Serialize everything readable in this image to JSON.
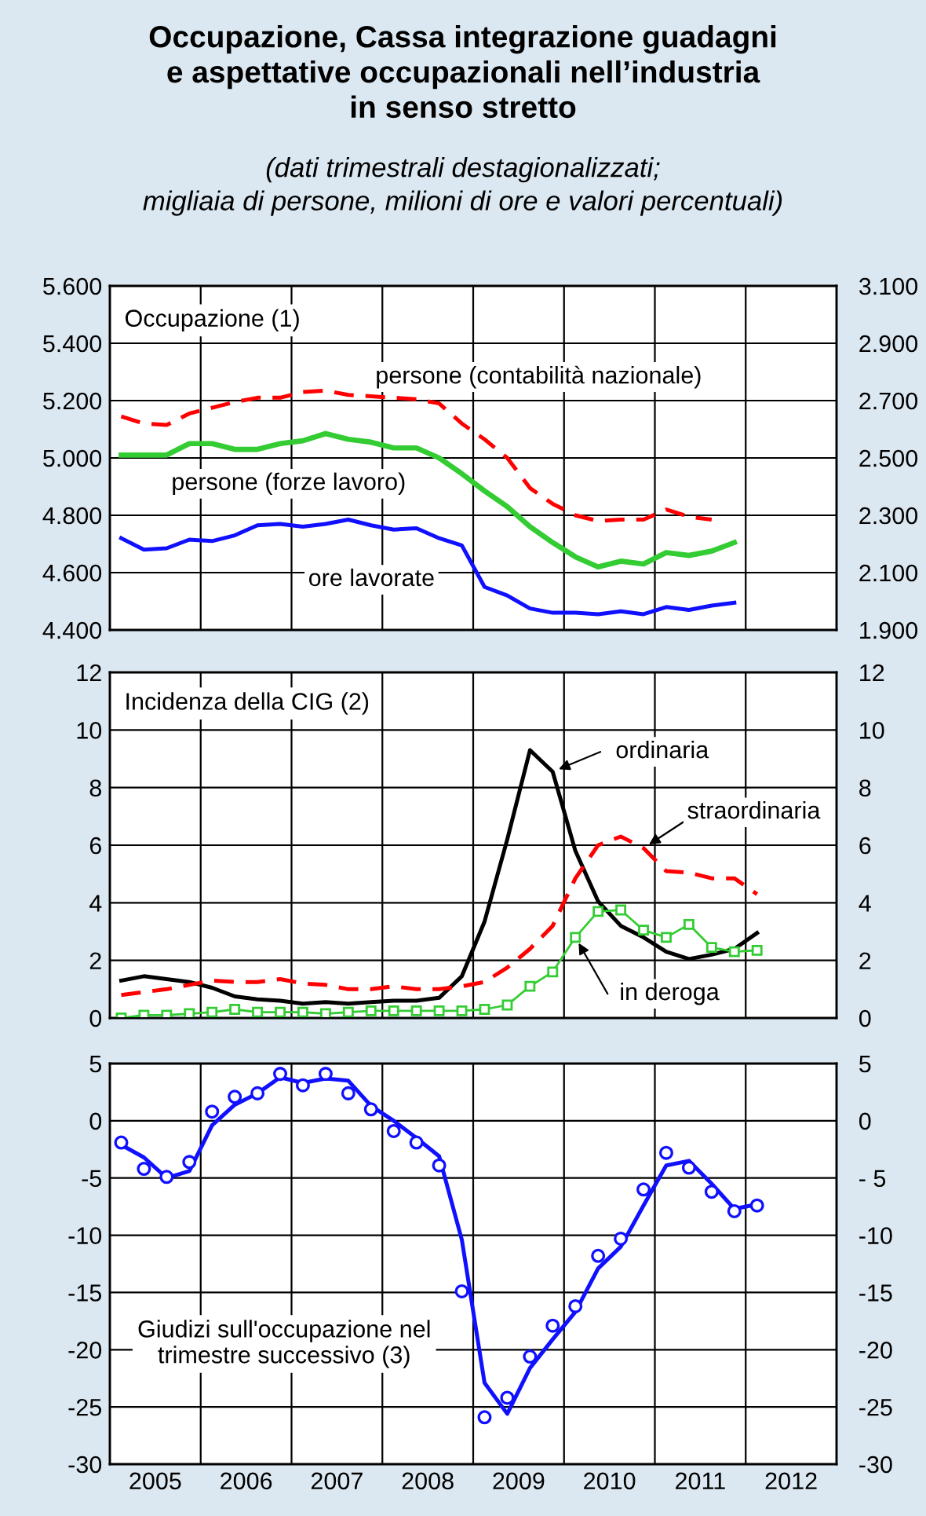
{
  "chart_data": [
    {
      "type": "line",
      "title": "Occupazione, Cassa integrazione guadagni\ne aspettative occupazionali nell’industria\nin senso stretto",
      "subtitle": "(dati trimestrali destagionalizzati;\nmigliaia di persone, milioni di ore e valori percentuali)",
      "annotations": [
        "Occupazione (1)"
      ],
      "x": [
        2005.125,
        2005.375,
        2005.625,
        2005.875,
        2006.125,
        2006.375,
        2006.625,
        2006.875,
        2007.125,
        2007.375,
        2007.625,
        2007.875,
        2008.125,
        2008.375,
        2008.625,
        2008.875,
        2009.125,
        2009.375,
        2009.625,
        2009.875,
        2010.125,
        2010.375,
        2010.625,
        2010.875,
        2011.125,
        2011.375,
        2011.625,
        2011.875
      ],
      "series": [
        {
          "name": "persone (contabilità nazionale)",
          "color": "#ff0000",
          "line_style": "dashed",
          "values": [
            5145,
            5120,
            5115,
            5155,
            5175,
            5195,
            5210,
            5210,
            5230,
            5235,
            5220,
            5215,
            5210,
            5205,
            5190,
            5120,
            5065,
            5000,
            4895,
            4840,
            4800,
            4780,
            4785,
            4785,
            4820,
            4795,
            4785,
            null
          ]
        },
        {
          "name": "persone (forze lavoro)",
          "color": "#33cc33",
          "values": [
            5010,
            5010,
            5010,
            5050,
            5050,
            5030,
            5030,
            5050,
            5060,
            5085,
            5065,
            5055,
            5035,
            5035,
            5000,
            4945,
            4885,
            4830,
            4760,
            4705,
            4655,
            4620,
            4640,
            4630,
            4670,
            4660,
            4675,
            4705
          ]
        },
        {
          "name": "ore lavorate",
          "color": "#1010ff",
          "axis": "y2",
          "values": [
            2220,
            2180,
            2185,
            2215,
            2210,
            2230,
            2265,
            2270,
            2260,
            2270,
            2285,
            2265,
            2250,
            2255,
            2220,
            2195,
            2050,
            2020,
            1975,
            1960,
            1960,
            1955,
            1965,
            1955,
            1980,
            1970,
            1985,
            1995
          ]
        }
      ],
      "xlim": [
        2005,
        2013
      ],
      "xticks": [
        {
          "value": 2006,
          "label": null
        },
        {
          "value": 2007,
          "label": null
        },
        {
          "value": 2008,
          "label": null
        },
        {
          "value": 2009,
          "label": null
        },
        {
          "value": 2010,
          "label": null
        },
        {
          "value": 2011,
          "label": null
        },
        {
          "value": 2012,
          "label": null
        }
      ],
      "ylim": [
        4400,
        5600
      ],
      "yticks": [
        {
          "value": 4400,
          "label": "4.400"
        },
        {
          "value": 4600,
          "label": "4.600"
        },
        {
          "value": 4800,
          "label": "4.800"
        },
        {
          "value": 5000,
          "label": "5.000"
        },
        {
          "value": 5200,
          "label": "5.200"
        },
        {
          "value": 5400,
          "label": "5.400"
        },
        {
          "value": 5600,
          "label": "5.600"
        }
      ],
      "y2lim": [
        1900,
        3100
      ],
      "y2ticks": [
        {
          "value": 1900,
          "label": "1.900"
        },
        {
          "value": 2100,
          "label": "2.100"
        },
        {
          "value": 2300,
          "label": "2.300"
        },
        {
          "value": 2500,
          "label": "2.500"
        },
        {
          "value": 2700,
          "label": "2.700"
        },
        {
          "value": 2900,
          "label": "2.900"
        },
        {
          "value": 3100,
          "label": "3.100"
        }
      ],
      "grid": true,
      "tick_labels": "y"
    },
    {
      "type": "line",
      "annotations": [
        "Incidenza della CIG (2)"
      ],
      "x": [
        2005.125,
        2005.375,
        2005.625,
        2005.875,
        2006.125,
        2006.375,
        2006.625,
        2006.875,
        2007.125,
        2007.375,
        2007.625,
        2007.875,
        2008.125,
        2008.375,
        2008.625,
        2008.875,
        2009.125,
        2009.375,
        2009.625,
        2009.875,
        2010.125,
        2010.375,
        2010.625,
        2010.875,
        2011.125,
        2011.375,
        2011.625,
        2011.875,
        2012.125
      ],
      "series": [
        {
          "name": "ordinaria",
          "color": "#000000",
          "values": [
            1.3,
            1.45,
            1.35,
            1.25,
            1.05,
            0.75,
            0.65,
            0.6,
            0.5,
            0.55,
            0.5,
            0.55,
            0.6,
            0.6,
            0.7,
            1.45,
            3.35,
            6.2,
            9.3,
            8.55,
            5.8,
            4.05,
            3.2,
            2.8,
            2.3,
            2.05,
            2.2,
            2.4,
            2.95
          ]
        },
        {
          "name": "straordinaria",
          "color": "#ff0000",
          "line_style": "dashed",
          "values": [
            0.8,
            0.9,
            1.0,
            1.15,
            1.3,
            1.25,
            1.25,
            1.35,
            1.2,
            1.15,
            1.0,
            1.0,
            1.1,
            1.0,
            1.0,
            1.1,
            1.25,
            1.75,
            2.4,
            3.2,
            4.85,
            6.0,
            6.3,
            5.9,
            5.1,
            5.05,
            4.85,
            4.85,
            4.3
          ]
        },
        {
          "name": "in deroga",
          "color": "#33cc33",
          "marker": "square",
          "values": [
            0.0,
            0.1,
            0.1,
            0.15,
            0.2,
            0.3,
            0.2,
            0.2,
            0.2,
            0.15,
            0.2,
            0.25,
            0.25,
            0.25,
            0.25,
            0.25,
            0.3,
            0.45,
            1.1,
            1.6,
            2.8,
            3.7,
            3.75,
            3.05,
            2.8,
            3.25,
            2.45,
            2.3,
            2.35
          ]
        }
      ],
      "xlim": [
        2005,
        2013
      ],
      "xticks": [
        {
          "value": 2006,
          "label": null
        },
        {
          "value": 2007,
          "label": null
        },
        {
          "value": 2008,
          "label": null
        },
        {
          "value": 2009,
          "label": null
        },
        {
          "value": 2010,
          "label": null
        },
        {
          "value": 2011,
          "label": null
        },
        {
          "value": 2012,
          "label": null
        }
      ],
      "ylim": [
        0,
        12
      ],
      "yticks": [
        0,
        2,
        4,
        6,
        8,
        10,
        12
      ],
      "y2lim": [
        0,
        12
      ],
      "y2ticks": [
        0,
        2,
        4,
        6,
        8,
        10,
        12
      ],
      "grid": true,
      "tick_labels": "y"
    },
    {
      "type": "line",
      "annotations": [
        "Giudizi sull'occupazione nel\ntrimestre successivo (3)"
      ],
      "x": [
        2005.125,
        2005.375,
        2005.625,
        2005.875,
        2006.125,
        2006.375,
        2006.625,
        2006.875,
        2007.125,
        2007.375,
        2007.625,
        2007.875,
        2008.125,
        2008.375,
        2008.625,
        2008.875,
        2009.125,
        2009.375,
        2009.625,
        2009.875,
        2010.125,
        2010.375,
        2010.625,
        2010.875,
        2011.125,
        2011.375,
        2011.625,
        2011.875,
        2012.125
      ],
      "series": [
        {
          "color": "#1010ff",
          "values": [
            -2.1,
            -3.2,
            -5.0,
            -4.4,
            -0.4,
            1.4,
            2.4,
            3.8,
            3.3,
            3.7,
            3.5,
            1.3,
            0.0,
            -1.5,
            -3.1,
            -10.4,
            -22.9,
            -25.6,
            -21.6,
            -19.1,
            -16.7,
            -12.9,
            -11.0,
            -7.4,
            -3.9,
            -3.5,
            -5.5,
            -7.7,
            -7.3
          ]
        },
        {
          "type": "scatter",
          "marker": "circle",
          "color": "#1010ff",
          "values": [
            -1.9,
            -4.2,
            -4.9,
            -3.6,
            0.8,
            2.1,
            2.4,
            4.1,
            3.1,
            4.1,
            2.4,
            1.0,
            -0.9,
            -1.9,
            -3.9,
            -14.9,
            -25.9,
            -24.2,
            -20.6,
            -17.9,
            -16.2,
            -11.8,
            -10.3,
            -6.0,
            -2.8,
            -4.1,
            -6.2,
            -7.9,
            -7.4
          ]
        }
      ],
      "xlim": [
        2005,
        2013
      ],
      "xticks": [
        {
          "value": 2005.5,
          "label": "2005"
        },
        {
          "value": 2006,
          "label": null
        },
        {
          "value": 2006.5,
          "label": "2006"
        },
        {
          "value": 2007,
          "label": null
        },
        {
          "value": 2007.5,
          "label": "2007"
        },
        {
          "value": 2008,
          "label": null
        },
        {
          "value": 2008.5,
          "label": "2008"
        },
        {
          "value": 2009,
          "label": null
        },
        {
          "value": 2009.5,
          "label": "2009"
        },
        {
          "value": 2010,
          "label": null
        },
        {
          "value": 2010.5,
          "label": "2010"
        },
        {
          "value": 2011,
          "label": null
        },
        {
          "value": 2011.5,
          "label": "2011"
        },
        {
          "value": 2012,
          "label": null
        },
        {
          "value": 2012.5,
          "label": "2012"
        }
      ],
      "ylim": [
        -30,
        5
      ],
      "yticks": [
        -30,
        -25,
        -20,
        -15,
        -10,
        -5,
        0,
        5
      ],
      "y2lim": [
        -30,
        5
      ],
      "y2ticks": [
        -30,
        -25,
        -20,
        -15,
        -10,
        {
          "value": -5,
          "label": "- 5"
        },
        0,
        5
      ],
      "grid": true
    }
  ]
}
